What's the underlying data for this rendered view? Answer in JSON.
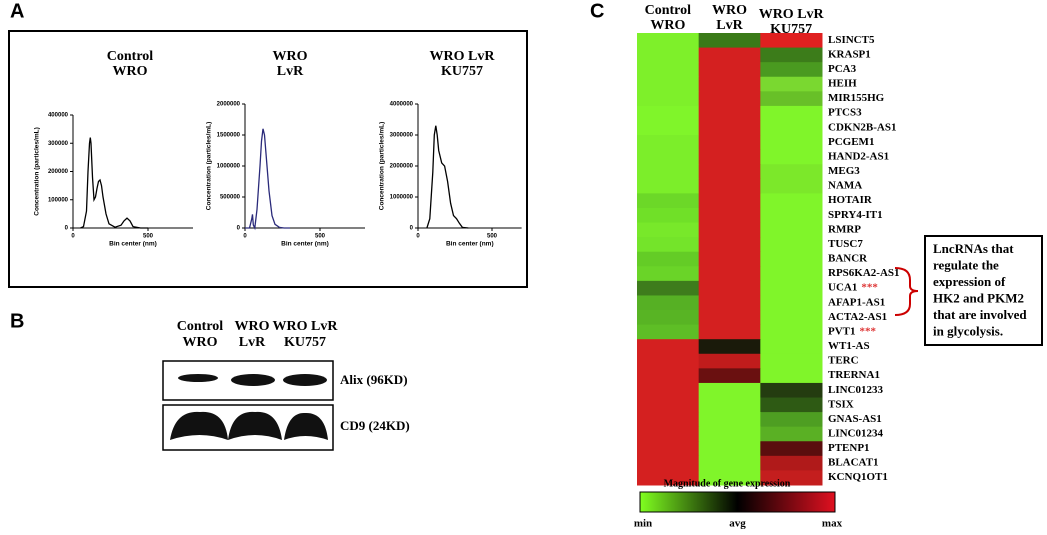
{
  "panels": {
    "a": "A",
    "b": "B",
    "c": "C"
  },
  "nta": [
    {
      "title": [
        "Control",
        "WRO"
      ],
      "ylabel": "Concentration (particles/mL)",
      "xlabel": "Bin center (nm)",
      "color": "#000000",
      "xlim": [
        0,
        800
      ],
      "xticks": [
        0,
        500
      ],
      "ylim": [
        0,
        400000
      ],
      "yticks": [
        0,
        100000,
        200000,
        300000,
        400000
      ],
      "x": [
        50,
        70,
        90,
        100,
        110,
        115,
        120,
        130,
        140,
        150,
        160,
        170,
        180,
        190,
        200,
        220,
        240,
        280,
        320,
        340,
        360,
        380,
        400,
        450,
        500
      ],
      "y": [
        0,
        5000,
        60000,
        200000,
        300000,
        320000,
        300000,
        180000,
        100000,
        110000,
        140000,
        165000,
        170000,
        150000,
        110000,
        50000,
        15000,
        3000,
        10000,
        25000,
        35000,
        25000,
        5000,
        0,
        0
      ]
    },
    {
      "title": [
        "WRO",
        "LvR"
      ],
      "ylabel": "Concentration (particles/mL)",
      "xlabel": "Bin center (nm)",
      "color": "#2a2a7a",
      "xlim": [
        0,
        800
      ],
      "xticks": [
        0,
        500
      ],
      "ylim": [
        0,
        2000000
      ],
      "yticks": [
        0,
        500000,
        1000000,
        1500000,
        2000000
      ],
      "x": [
        0,
        30,
        45,
        50,
        55,
        65,
        80,
        100,
        110,
        120,
        130,
        140,
        160,
        180,
        200,
        230,
        260,
        300
      ],
      "y": [
        0,
        0,
        150000,
        220000,
        50000,
        0,
        300000,
        1000000,
        1400000,
        1600000,
        1500000,
        1200000,
        600000,
        200000,
        60000,
        10000,
        0,
        0
      ]
    },
    {
      "title": [
        "WRO LvR",
        "KU757"
      ],
      "ylabel": "Concentration (particles/mL)",
      "xlabel": "Bin center (nm)",
      "color": "#000000",
      "xlim": [
        0,
        700
      ],
      "xticks": [
        0,
        500
      ],
      "ylim": [
        0,
        4000000
      ],
      "yticks": [
        0,
        1000000,
        2000000,
        3000000,
        4000000
      ],
      "x": [
        60,
        80,
        100,
        110,
        120,
        130,
        140,
        160,
        180,
        200,
        220,
        240,
        260,
        280,
        300,
        340
      ],
      "y": [
        0,
        300000,
        1800000,
        3000000,
        3300000,
        3000000,
        2500000,
        2100000,
        2000000,
        1500000,
        800000,
        400000,
        300000,
        150000,
        20000,
        0
      ]
    }
  ],
  "blot": {
    "columns": [
      [
        "Control",
        "WRO"
      ],
      [
        "WRO",
        "LvR"
      ],
      [
        "WRO LvR",
        "KU757"
      ]
    ],
    "bands": [
      "Alix (96KD)",
      "CD9 (24KD)"
    ]
  },
  "heatmap": {
    "columns": [
      [
        "Control",
        "WRO"
      ],
      [
        "WRO",
        "LvR"
      ],
      [
        "WRO LvR",
        "KU757"
      ]
    ],
    "rows": [
      {
        "name": "LSINCT5",
        "colors": [
          "#7ef02a",
          "#3a7a18",
          "#e02020"
        ]
      },
      {
        "name": "KRASP1",
        "colors": [
          "#7ef02a",
          "#d42020",
          "#3c7c1a"
        ]
      },
      {
        "name": "PCA3",
        "colors": [
          "#7ef02a",
          "#d42020",
          "#4a9a20"
        ]
      },
      {
        "name": "HEIH",
        "colors": [
          "#7ef02a",
          "#d42020",
          "#7ad830"
        ]
      },
      {
        "name": "MIR155HG",
        "colors": [
          "#7ef02a",
          "#d42020",
          "#68c028"
        ]
      },
      {
        "name": "PTCS3",
        "colors": [
          "#80f52a",
          "#d42020",
          "#80f52a"
        ]
      },
      {
        "name": "CDKN2B-AS1",
        "colors": [
          "#80f52a",
          "#d42020",
          "#80f52a"
        ]
      },
      {
        "name": "PCGEM1",
        "colors": [
          "#7cee2a",
          "#d42020",
          "#80f52a"
        ]
      },
      {
        "name": "HAND2-AS1",
        "colors": [
          "#7cee2a",
          "#d42020",
          "#80f52a"
        ]
      },
      {
        "name": "MEG3",
        "colors": [
          "#7cee2a",
          "#d42020",
          "#7ce82a"
        ]
      },
      {
        "name": "NAMA",
        "colors": [
          "#7cee2a",
          "#d42020",
          "#7ce82a"
        ]
      },
      {
        "name": "HOTAIR",
        "colors": [
          "#6cd828",
          "#d42020",
          "#80f52a"
        ]
      },
      {
        "name": "SPRY4-IT1",
        "colors": [
          "#70e028",
          "#d42020",
          "#80f52a"
        ]
      },
      {
        "name": "RMRP",
        "colors": [
          "#78e82a",
          "#d42020",
          "#80f52a"
        ]
      },
      {
        "name": "TUSC7",
        "colors": [
          "#74e42a",
          "#d42020",
          "#80f52a"
        ]
      },
      {
        "name": "BANCR",
        "colors": [
          "#64cc26",
          "#d42020",
          "#80f52a"
        ]
      },
      {
        "name": "RPS6KA2-AS1",
        "colors": [
          "#6ad428",
          "#d42020",
          "#80f52a"
        ]
      },
      {
        "name": "UCA1",
        "mark": "***",
        "colors": [
          "#3e7c1c",
          "#d42020",
          "#80f52a"
        ]
      },
      {
        "name": "AFAP1-AS1",
        "colors": [
          "#56b024",
          "#d42020",
          "#80f52a"
        ]
      },
      {
        "name": "ACTA2-AS1",
        "colors": [
          "#58b424",
          "#d42020",
          "#80f52a"
        ]
      },
      {
        "name": "PVT1",
        "mark": "***",
        "colors": [
          "#5ebe26",
          "#d42020",
          "#80f52a"
        ]
      },
      {
        "name": "WT1-AS",
        "colors": [
          "#d42020",
          "#1a1a0a",
          "#80f52a"
        ]
      },
      {
        "name": "TERC",
        "colors": [
          "#d42020",
          "#c01c1c",
          "#80f52a"
        ]
      },
      {
        "name": "TRERNA1",
        "colors": [
          "#d42020",
          "#6a1010",
          "#80f52a"
        ]
      },
      {
        "name": "LINC01233",
        "colors": [
          "#d42020",
          "#80f52a",
          "#243c10"
        ]
      },
      {
        "name": "TSIX",
        "colors": [
          "#d42020",
          "#80f52a",
          "#2e5a14"
        ]
      },
      {
        "name": "GNAS-AS1",
        "colors": [
          "#d42020",
          "#80f52a",
          "#4e9e22"
        ]
      },
      {
        "name": "LINC01234",
        "colors": [
          "#d42020",
          "#80f52a",
          "#5ab024"
        ]
      },
      {
        "name": "PTENP1",
        "colors": [
          "#d42020",
          "#80f52a",
          "#5a0e0e"
        ]
      },
      {
        "name": "BLACAT1",
        "colors": [
          "#d42020",
          "#80f52a",
          "#b01a1a"
        ]
      },
      {
        "name": "KCNQ1OT1",
        "colors": [
          "#d42020",
          "#80f52a",
          "#c41e1e"
        ]
      }
    ],
    "callout": [
      "LncRNAs that",
      "regulate the",
      "expression of",
      "HK2 and PKM2",
      "that are involved",
      "in glycolysis."
    ],
    "legend": {
      "title": "Magnitude of gene expression",
      "labels": [
        "min",
        "avg",
        "max"
      ],
      "colors": [
        "#80ff20",
        "#000000",
        "#e01020"
      ]
    }
  }
}
